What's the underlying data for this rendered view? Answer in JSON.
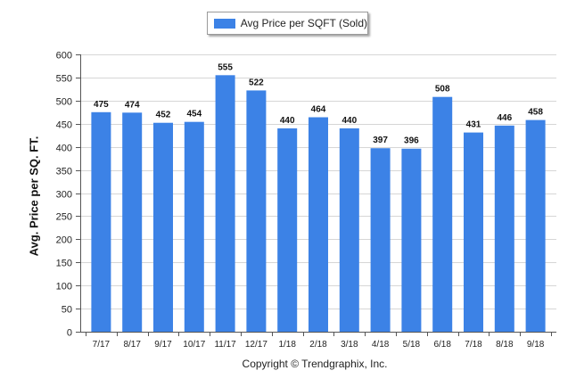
{
  "chart_data": {
    "type": "bar",
    "categories": [
      "7/17",
      "8/17",
      "9/17",
      "10/17",
      "11/17",
      "12/17",
      "1/18",
      "2/18",
      "3/18",
      "4/18",
      "5/18",
      "6/18",
      "7/18",
      "8/18",
      "9/18"
    ],
    "series": [
      {
        "name": "Avg Price per SQFT (Sold)",
        "values": [
          475,
          474,
          452,
          454,
          555,
          522,
          440,
          464,
          440,
          397,
          396,
          508,
          431,
          446,
          458
        ]
      }
    ],
    "title": "",
    "xlabel": "",
    "ylabel": "Avg. Price per SQ. FT.",
    "ylim": [
      0,
      600
    ],
    "yticks": [
      0,
      50,
      100,
      150,
      200,
      250,
      300,
      350,
      400,
      450,
      500,
      550,
      600
    ],
    "grid": true,
    "legend_position": "top-center",
    "bar_color": "#3c82e6",
    "data_labels": true
  },
  "legend": {
    "label": "Avg Price per SQFT (Sold)"
  },
  "footer": {
    "copyright": "Copyright © Trendgraphix, Inc."
  }
}
